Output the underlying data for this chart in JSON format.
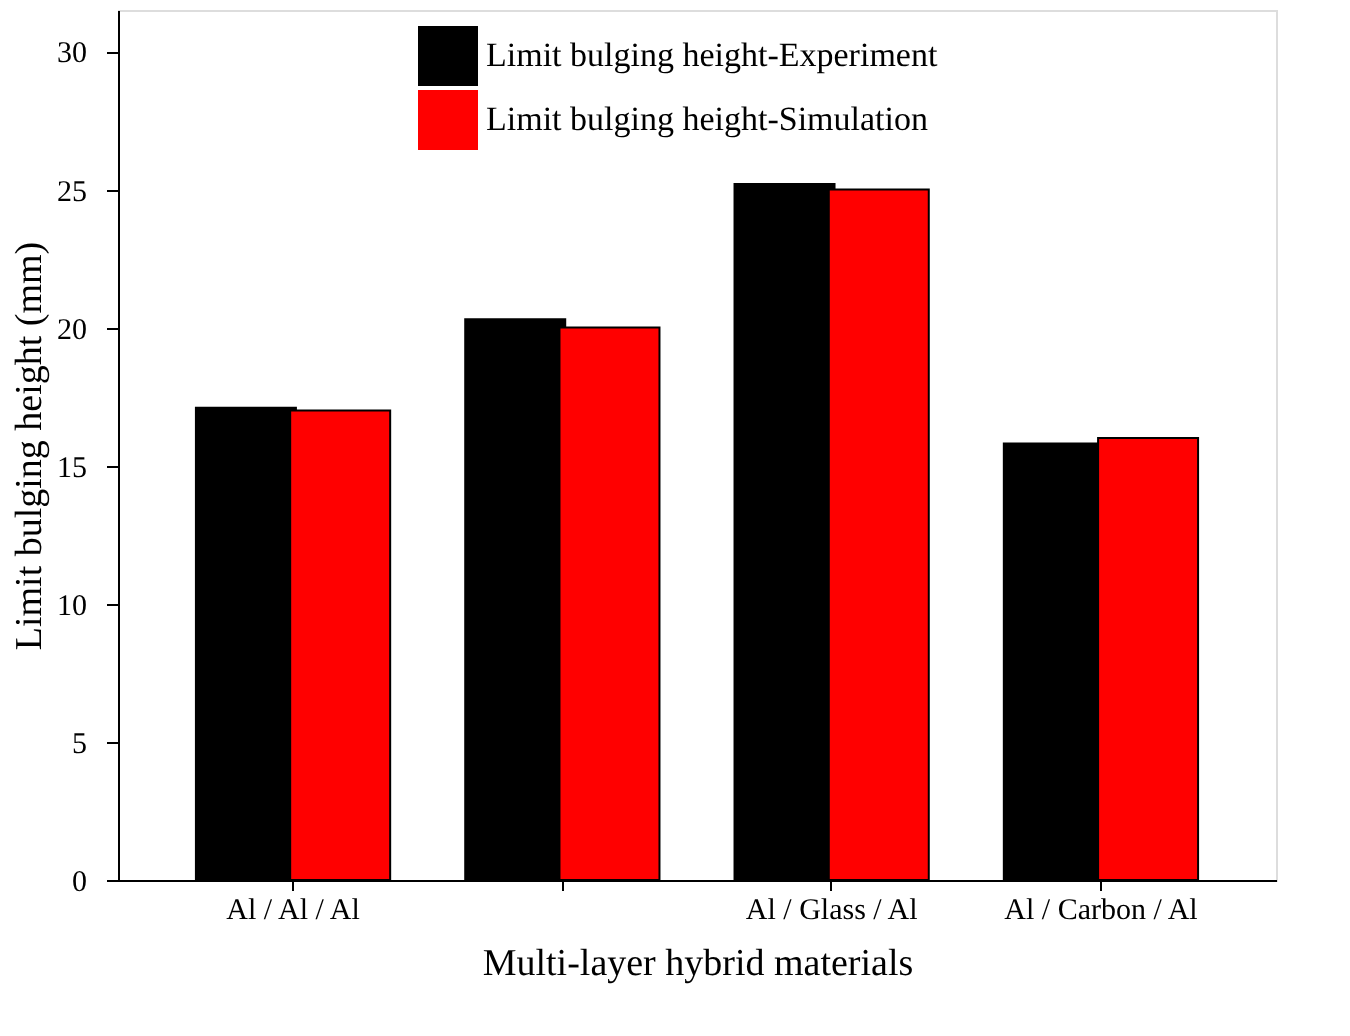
{
  "chart_data": {
    "type": "bar",
    "xlabel": "Multi-layer hybrid materials",
    "ylabel": "Limit bulging height (mm)",
    "categories": [
      "Al / Al / Al",
      null,
      "Al / Glass / Al",
      "Al / Carbon / Al"
    ],
    "series": [
      {
        "name": "Limit bulging height-Experiment",
        "color": "#000000",
        "values": [
          17.1,
          20.3,
          25.2,
          15.8
        ]
      },
      {
        "name": "Limit bulging height-Simulation",
        "color": "#ff0000",
        "values": [
          17.0,
          20.0,
          25.0,
          16.0
        ]
      }
    ],
    "ylim": [
      0,
      31.5
    ],
    "yticks": [
      0,
      5,
      10,
      15,
      20,
      25,
      30
    ],
    "grid": false,
    "legend": "top"
  }
}
